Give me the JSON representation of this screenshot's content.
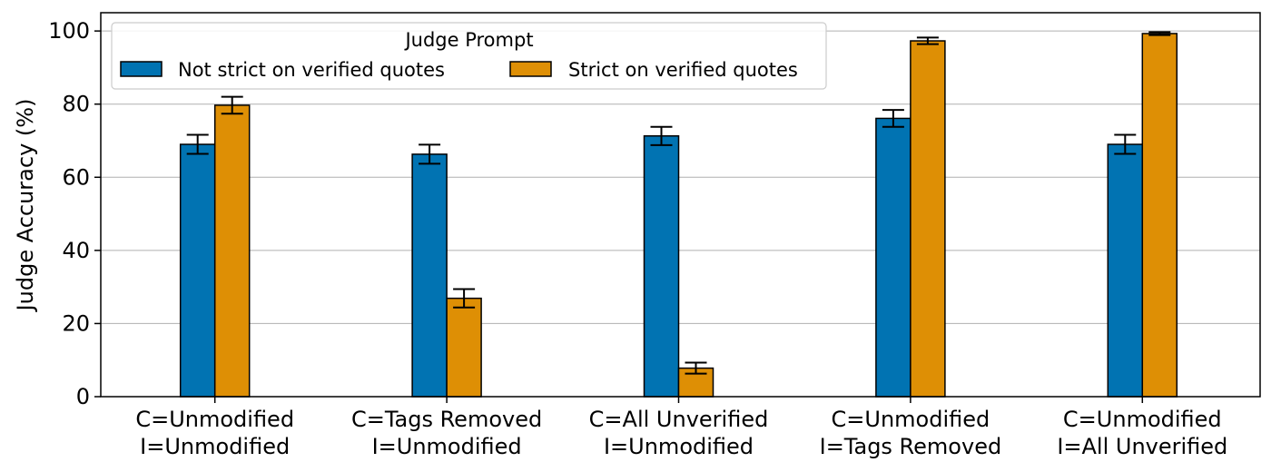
{
  "chart_data": {
    "type": "bar",
    "ylabel": "Judge Accuracy (%)",
    "xlabel": "",
    "ylim": [
      0,
      105
    ],
    "yticks": [
      0,
      20,
      40,
      60,
      80,
      100
    ],
    "grid": "y",
    "categories": [
      [
        "C=Unmodified",
        "I=Unmodified"
      ],
      [
        "C=Tags Removed",
        "I=Unmodified"
      ],
      [
        "C=All Unverified",
        "I=Unmodified"
      ],
      [
        "C=Unmodified",
        "I=Tags Removed"
      ],
      [
        "C=Unmodified",
        "I=All Unverified"
      ]
    ],
    "legend": {
      "title": "Judge Prompt",
      "placement": "top-left"
    },
    "series": [
      {
        "name": "Not strict on verified quotes",
        "color": "#0173b2",
        "values": [
          69,
          66.3,
          71.3,
          76.1,
          69
        ],
        "errors": [
          2.6,
          2.6,
          2.5,
          2.3,
          2.6
        ]
      },
      {
        "name": "Strict on verified quotes",
        "color": "#de8f05",
        "values": [
          79.7,
          26.9,
          7.8,
          97.3,
          99.3
        ],
        "errors": [
          2.3,
          2.5,
          1.5,
          0.9,
          0.4
        ]
      }
    ]
  }
}
